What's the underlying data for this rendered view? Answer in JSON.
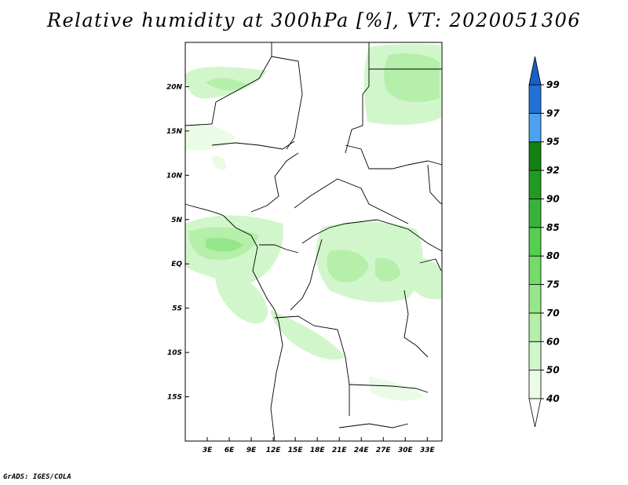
{
  "title": "Relative humidity at 300hPa [%], VT: 2020051306",
  "credit": "GrADS: IGES/COLA",
  "map": {
    "lon_range": [
      0,
      35
    ],
    "lat_range": [
      -20,
      25
    ],
    "lat_ticks": [
      {
        "value": 20,
        "label": "20N"
      },
      {
        "value": 15,
        "label": "15N"
      },
      {
        "value": 10,
        "label": "10N"
      },
      {
        "value": 5,
        "label": "5N"
      },
      {
        "value": 0,
        "label": "EQ"
      },
      {
        "value": -5,
        "label": "5S"
      },
      {
        "value": -10,
        "label": "10S"
      },
      {
        "value": -15,
        "label": "15S"
      }
    ],
    "lon_ticks": [
      {
        "value": 3,
        "label": "3E"
      },
      {
        "value": 6,
        "label": "6E"
      },
      {
        "value": 9,
        "label": "9E"
      },
      {
        "value": 12,
        "label": "12E"
      },
      {
        "value": 15,
        "label": "15E"
      },
      {
        "value": 18,
        "label": "18E"
      },
      {
        "value": 21,
        "label": "21E"
      },
      {
        "value": 24,
        "label": "24E"
      },
      {
        "value": 27,
        "label": "27E"
      },
      {
        "value": 30,
        "label": "30E"
      },
      {
        "value": 33,
        "label": "33E"
      }
    ]
  },
  "colorbar": {
    "levels": [
      {
        "label": "40",
        "color": "#ffffff"
      },
      {
        "label": "50",
        "color": "#eafbe6"
      },
      {
        "label": "60",
        "color": "#d2f6cb"
      },
      {
        "label": "70",
        "color": "#b5efaa"
      },
      {
        "label": "75",
        "color": "#96e68a"
      },
      {
        "label": "80",
        "color": "#74dc6a"
      },
      {
        "label": "85",
        "color": "#55cf50"
      },
      {
        "label": "90",
        "color": "#37b437"
      },
      {
        "label": "92",
        "color": "#229a22"
      },
      {
        "label": "95",
        "color": "#138213"
      },
      {
        "label": "97",
        "color": "#4ba3f0"
      },
      {
        "label": "99",
        "color": "#2172d6"
      }
    ],
    "top_color": "#1b5ec4",
    "bottom_color": "#ffffff"
  }
}
